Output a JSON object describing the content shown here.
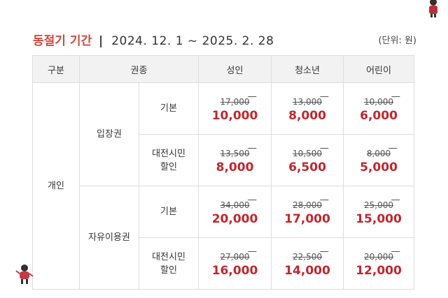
{
  "header": {
    "season": "동절기 기간",
    "separator": "|",
    "period": "2024. 12. 1 ~ 2025. 2. 28",
    "unit": "(단위: 원)"
  },
  "table": {
    "headers": [
      "구분",
      "권종",
      "성인",
      "청소년",
      "어린이"
    ],
    "group": "개인",
    "types": [
      "입장권",
      "자유이용권"
    ],
    "subtypes": [
      "기본",
      "대전시민\n할인",
      "기본",
      "대전시민\n할인"
    ],
    "rows": [
      {
        "adult": {
          "orig": "17,000",
          "disc": "10,000"
        },
        "youth": {
          "orig": "13,000",
          "disc": "8,000"
        },
        "child": {
          "orig": "10,000",
          "disc": "6,000"
        }
      },
      {
        "adult": {
          "orig": "13,500",
          "disc": "8,000"
        },
        "youth": {
          "orig": "10,500",
          "disc": "6,500"
        },
        "child": {
          "orig": "8,000",
          "disc": "5,000"
        }
      },
      {
        "adult": {
          "orig": "34,000",
          "disc": "20,000"
        },
        "youth": {
          "orig": "28,000",
          "disc": "17,000"
        },
        "child": {
          "orig": "25,000",
          "disc": "15,000"
        }
      },
      {
        "adult": {
          "orig": "27,000",
          "disc": "16,000"
        },
        "youth": {
          "orig": "22,500",
          "disc": "14,000"
        },
        "child": {
          "orig": "20,000",
          "disc": "12,000"
        }
      }
    ]
  },
  "colors": {
    "accent": "#d1493e",
    "discount": "#c0272d",
    "header_bg": "#f2f2f2",
    "border": "#dddddd"
  },
  "icons": [
    "winter-character-icon",
    "winter-character-icon"
  ]
}
